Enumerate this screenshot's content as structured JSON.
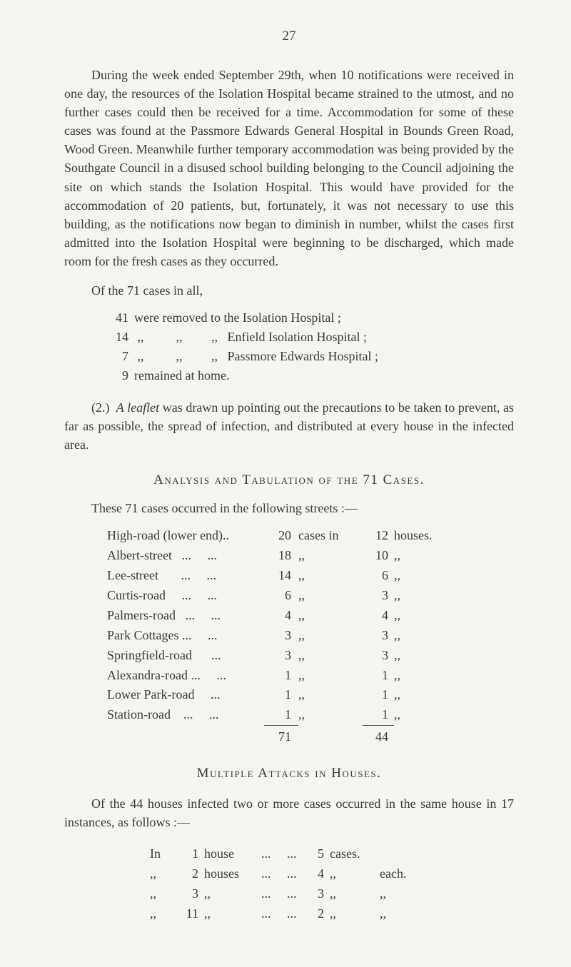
{
  "page_number": "27",
  "para1": "During the week ended September 29th, when 10 notifications were received in one day, the resources of the Isolation Hospital became strained to the utmost, and no further cases could then be received for a time. Accommodation for some of these cases was found at the Passmore Edwards General Hospital in Bounds Green Road, Wood Green. Meanwhile further temporary accommodation was being provided by the Southgate Council in a disused school building belonging to the Council adjoining the site on which stands the Isolation Hospital. This would have provided for the accommodation of 20 patients, but, fortunately, it was not necessary to use this building, as the notifications now began to diminish in number, whilst the cases first admitted into the Isolation Hospital were beginning to be discharged, which made room for the fresh cases as they occurred.",
  "of_the_line": "Of the 71 cases in all,",
  "case_breakdown": [
    {
      "n": "41",
      "text": "were removed to the Isolation Hospital ;"
    },
    {
      "n": "14",
      "text": " ,,          ,,         ,,   Enfield Isolation Hospital ;"
    },
    {
      "n": "7",
      "text": " ,,          ,,         ,,   Passmore Edwards Hospital ;"
    },
    {
      "n": "9",
      "text": "remained at home."
    }
  ],
  "para2_prefix": "(2.)  ",
  "para2_italic": "A leaflet",
  "para2_rest": " was drawn up pointing out the precautions to be taken to prevent, as far as possible, the spread of infection, and distributed at every house in the infected area.",
  "heading1": "Analysis and Tabulation of the 71 Cases.",
  "streets_intro": "These 71 cases occurred in the following streets :—",
  "streets": [
    {
      "name": "High-road (lower end)..",
      "count": "20",
      "cases": "cases in",
      "hn": "12",
      "houses": "houses."
    },
    {
      "name": "Albert-street   ...     ...",
      "count": "18",
      "cases": ",,",
      "hn": "10",
      "houses": ",,"
    },
    {
      "name": "Lee-street       ...     ...",
      "count": "14",
      "cases": ",,",
      "hn": "6",
      "houses": ",,"
    },
    {
      "name": "Curtis-road     ...     ...",
      "count": "6",
      "cases": ",,",
      "hn": "3",
      "houses": ",,"
    },
    {
      "name": "Palmers-road   ...     ...",
      "count": "4",
      "cases": ",,",
      "hn": "4",
      "houses": ",,"
    },
    {
      "name": "Park Cottages ...     ...",
      "count": "3",
      "cases": ",,",
      "hn": "3",
      "houses": ",,"
    },
    {
      "name": "Springfield-road      ...",
      "count": "3",
      "cases": ",,",
      "hn": "3",
      "houses": ",,"
    },
    {
      "name": "Alexandra-road ...     ...",
      "count": "1",
      "cases": ",,",
      "hn": "1",
      "houses": ",,"
    },
    {
      "name": "Lower Park-road     ...",
      "count": "1",
      "cases": ",,",
      "hn": "1",
      "houses": ",,"
    },
    {
      "name": "Station-road    ...     ...",
      "count": "1",
      "cases": ",,",
      "hn": "1",
      "houses": ",,"
    }
  ],
  "streets_total": {
    "count": "71",
    "hn": "44"
  },
  "heading2": "Multiple Attacks in Houses.",
  "multi_intro": "Of the 44 houses infected two or more cases occurred in the same house in 17 instances, as follows :—",
  "house_rows": [
    {
      "in": "In",
      "n": "1",
      "house": "house",
      "dots": "...     ...",
      "cn": "5",
      "cases": "cases.",
      "each": ""
    },
    {
      "in": ",,",
      "n": "2",
      "house": "houses",
      "dots": "...     ...",
      "cn": "4",
      "cases": ",,",
      "each": "each."
    },
    {
      "in": ",,",
      "n": "3",
      "house": ",,",
      "dots": "...     ...",
      "cn": "3",
      "cases": ",,",
      "each": ",,"
    },
    {
      "in": ",,",
      "n": "11",
      "house": ",,",
      "dots": "...     ...",
      "cn": "2",
      "cases": ",,",
      "each": ",,"
    }
  ]
}
